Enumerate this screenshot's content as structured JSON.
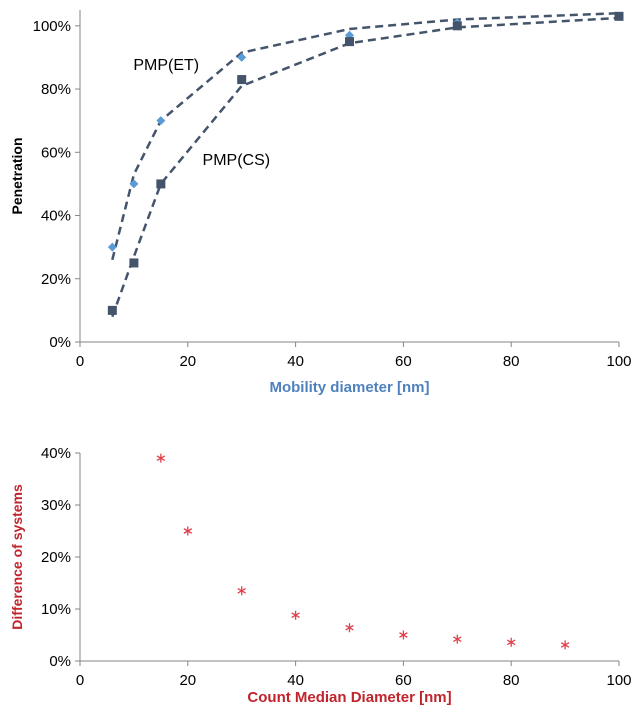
{
  "chart_data": [
    {
      "type": "scatter",
      "xlabel": "Mobility diameter [nm]",
      "ylabel": "Penetration",
      "xlim": [
        0,
        100
      ],
      "ylim": [
        0,
        1.05
      ],
      "x_ticks": [
        0,
        20,
        40,
        60,
        80,
        100
      ],
      "x_tick_labels": [
        "0",
        "20",
        "40",
        "60",
        "80",
        "100"
      ],
      "y_ticks": [
        0,
        0.2,
        0.4,
        0.6,
        0.8,
        1.0
      ],
      "y_tick_labels": [
        "0%",
        "20%",
        "40%",
        "60%",
        "80%",
        "100%"
      ],
      "grid": false,
      "series": [
        {
          "name": "PMP(ET)",
          "marker": "diamond",
          "color": "#5b9bd5",
          "x": [
            6,
            10,
            15,
            30,
            50,
            70,
            100
          ],
          "y": [
            0.3,
            0.5,
            0.7,
            0.9,
            0.97,
            1.01,
            1.03
          ],
          "trend_x": [
            6,
            10,
            15,
            30,
            50,
            70,
            100
          ],
          "trend_y": [
            0.26,
            0.53,
            0.7,
            0.915,
            0.99,
            1.02,
            1.04
          ]
        },
        {
          "name": "PMP(CS)",
          "marker": "square",
          "color": "#44546a",
          "x": [
            6,
            10,
            15,
            30,
            50,
            70,
            100
          ],
          "y": [
            0.1,
            0.25,
            0.5,
            0.83,
            0.95,
            1.0,
            1.03
          ],
          "trend_x": [
            6,
            10,
            15,
            30,
            50,
            70,
            100
          ],
          "trend_y": [
            0.08,
            0.27,
            0.5,
            0.81,
            0.945,
            0.995,
            1.025
          ]
        }
      ],
      "trendline_color": "#44546a",
      "axis_title_color": "#4f81bd",
      "annotations": [
        {
          "text": "PMP(ET)",
          "x": 16,
          "y": 0.86
        },
        {
          "text": "PMP(CS)",
          "x": 29,
          "y": 0.56
        }
      ]
    },
    {
      "type": "scatter",
      "xlabel": "Count Median Diameter [nm]",
      "ylabel": "Difference of systems",
      "xlim": [
        0,
        100
      ],
      "ylim": [
        0,
        0.4
      ],
      "x_ticks": [
        0,
        20,
        40,
        60,
        80,
        100
      ],
      "x_tick_labels": [
        "0",
        "20",
        "40",
        "60",
        "80",
        "100"
      ],
      "y_ticks": [
        0,
        0.1,
        0.2,
        0.3,
        0.4
      ],
      "y_tick_labels": [
        "0%",
        "10%",
        "20%",
        "30%",
        "40%"
      ],
      "grid": false,
      "series": [
        {
          "marker": "asterisk",
          "color": "#e0404a",
          "x": [
            15,
            20,
            30,
            40,
            50,
            60,
            70,
            80,
            90
          ],
          "y": [
            0.39,
            0.25,
            0.135,
            0.088,
            0.064,
            0.05,
            0.042,
            0.036,
            0.031
          ]
        }
      ],
      "axis_title_color": "#c0242c"
    }
  ]
}
